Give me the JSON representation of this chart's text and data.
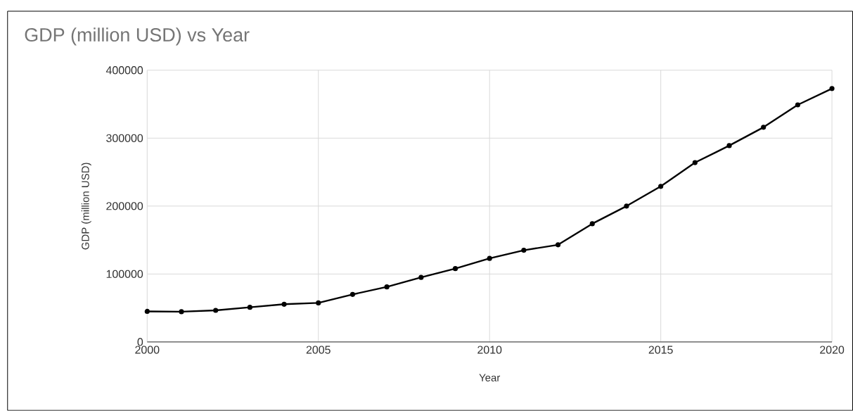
{
  "chart_data": {
    "type": "line",
    "title": "GDP (million USD) vs Year",
    "xlabel": "Year",
    "ylabel": "GDP (million USD)",
    "x": [
      2000,
      2001,
      2002,
      2003,
      2004,
      2005,
      2006,
      2007,
      2008,
      2009,
      2010,
      2011,
      2012,
      2013,
      2014,
      2015,
      2016,
      2017,
      2018,
      2019,
      2020
    ],
    "series": [
      {
        "color": "#000000",
        "values": [
          45000,
          44500,
          46500,
          51000,
          55500,
          57500,
          70000,
          81000,
          95000,
          108000,
          123000,
          135000,
          143000,
          174000,
          200000,
          229000,
          264000,
          289000,
          316000,
          349000,
          373000
        ]
      }
    ],
    "xlim": [
      2000,
      2020
    ],
    "ylim": [
      0,
      400000
    ],
    "xticks": [
      2000,
      2005,
      2010,
      2015,
      2020
    ],
    "yticks": [
      0,
      100000,
      200000,
      300000,
      400000
    ],
    "grid": true,
    "marker": "circle",
    "line_style": "solid"
  }
}
